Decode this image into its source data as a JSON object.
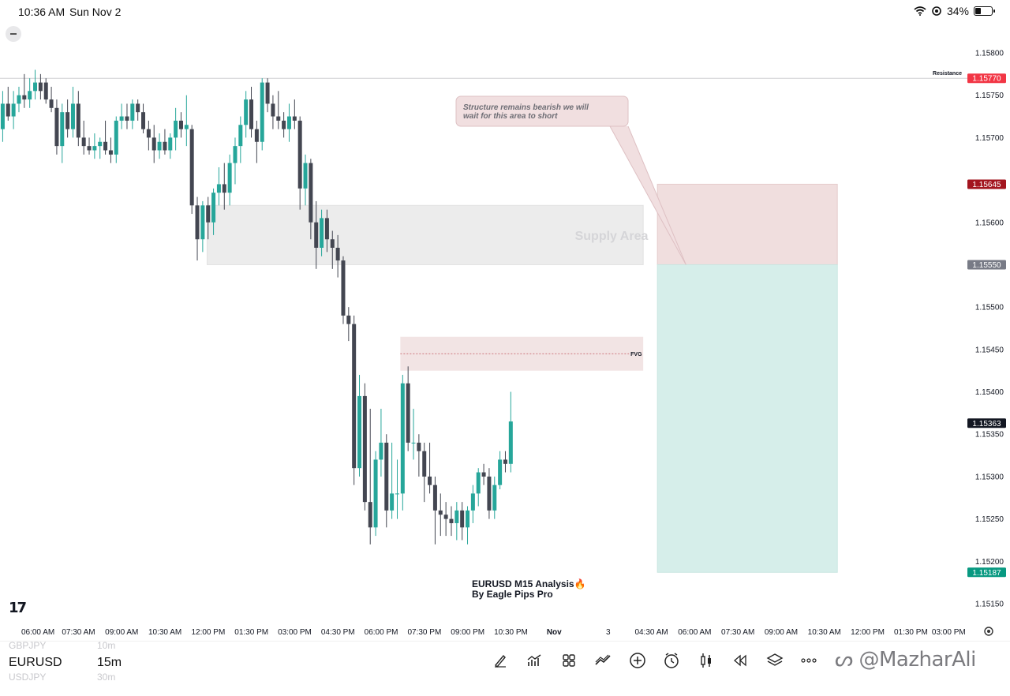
{
  "status_bar": {
    "time": "10:36 AM",
    "date": "Sun Nov 2",
    "battery": "34%",
    "battery_level": 0.34
  },
  "chart_data": {
    "type": "candlestick",
    "symbol": "EURUSD",
    "interval": "15m",
    "title": "EURUSD M15 Analysis🔥",
    "subtitle": "By Eagle Pips Pro",
    "ylim": [
      1.15135,
      1.1584
    ],
    "yticks": [
      1.158,
      1.1575,
      1.157,
      1.156,
      1.155,
      1.1545,
      1.154,
      1.1535,
      1.153,
      1.1525,
      1.152,
      1.1515
    ],
    "ytick_labels": [
      "1.15800",
      "1.15750",
      "1.15700",
      "1.15600",
      "1.15500",
      "1.15450",
      "1.15400",
      "1.15350",
      "1.15300",
      "1.15250",
      "1.15200",
      "1.15150"
    ],
    "xticks": [
      {
        "label": "06:00 AM",
        "bar": 5.5
      },
      {
        "label": "07:30 AM",
        "bar": 13
      },
      {
        "label": "09:00 AM",
        "bar": 21
      },
      {
        "label": "10:30 AM",
        "bar": 29
      },
      {
        "label": "12:00 PM",
        "bar": 37
      },
      {
        "label": "01:30 PM",
        "bar": 45
      },
      {
        "label": "03:00 PM",
        "bar": 53
      },
      {
        "label": "04:30 PM",
        "bar": 61
      },
      {
        "label": "06:00 PM",
        "bar": 69
      },
      {
        "label": "07:30 PM",
        "bar": 77
      },
      {
        "label": "09:00 PM",
        "bar": 85
      },
      {
        "label": "10:30 PM",
        "bar": 93
      },
      {
        "label": "Nov",
        "bar": 101
      },
      {
        "label": "3",
        "bar": 111
      },
      {
        "label": "04:30 AM",
        "bar": 119
      },
      {
        "label": "06:00 AM",
        "bar": 127
      },
      {
        "label": "07:30 AM",
        "bar": 135
      },
      {
        "label": "09:00 AM",
        "bar": 143
      },
      {
        "label": "10:30 AM",
        "bar": 151
      },
      {
        "label": "12:00 PM",
        "bar": 159
      },
      {
        "label": "01:30 PM",
        "bar": 167
      },
      {
        "label": "03:00 PM",
        "bar": 174
      }
    ],
    "ohlc": [
      [
        1.1571,
        1.15755,
        1.15695,
        1.1574
      ],
      [
        1.1574,
        1.1576,
        1.1572,
        1.15725
      ],
      [
        1.15725,
        1.15755,
        1.1571,
        1.1574
      ],
      [
        1.1574,
        1.1576,
        1.1573,
        1.1575
      ],
      [
        1.1575,
        1.15775,
        1.15735,
        1.15745
      ],
      [
        1.15745,
        1.1577,
        1.15735,
        1.15755
      ],
      [
        1.15755,
        1.1578,
        1.15745,
        1.15765
      ],
      [
        1.15765,
        1.15775,
        1.15745,
        1.15755
      ],
      [
        1.15765,
        1.1577,
        1.1574,
        1.15745
      ],
      [
        1.15745,
        1.1576,
        1.1573,
        1.15735
      ],
      [
        1.15735,
        1.15745,
        1.1568,
        1.1569
      ],
      [
        1.1569,
        1.1574,
        1.1567,
        1.1573
      ],
      [
        1.1573,
        1.15745,
        1.157,
        1.1571
      ],
      [
        1.1571,
        1.1576,
        1.157,
        1.1574
      ],
      [
        1.1574,
        1.15755,
        1.1569,
        1.157
      ],
      [
        1.157,
        1.1572,
        1.1568,
        1.1569
      ],
      [
        1.1569,
        1.157,
        1.1568,
        1.15685
      ],
      [
        1.15685,
        1.15705,
        1.15675,
        1.1569
      ],
      [
        1.1569,
        1.157,
        1.15675,
        1.15695
      ],
      [
        1.15695,
        1.1572,
        1.1568,
        1.15685
      ],
      [
        1.15685,
        1.157,
        1.1567,
        1.1568
      ],
      [
        1.1568,
        1.15725,
        1.1567,
        1.1572
      ],
      [
        1.1572,
        1.1574,
        1.1571,
        1.15725
      ],
      [
        1.15725,
        1.1574,
        1.1571,
        1.1572
      ],
      [
        1.1572,
        1.15745,
        1.1571,
        1.1574
      ],
      [
        1.1574,
        1.15745,
        1.1572,
        1.1573
      ],
      [
        1.1573,
        1.1574,
        1.15705,
        1.1571
      ],
      [
        1.1571,
        1.1572,
        1.15685,
        1.157
      ],
      [
        1.157,
        1.15715,
        1.1567,
        1.15685
      ],
      [
        1.15685,
        1.15705,
        1.15675,
        1.15695
      ],
      [
        1.15695,
        1.1571,
        1.1568,
        1.15685
      ],
      [
        1.15685,
        1.15705,
        1.15675,
        1.157
      ],
      [
        1.157,
        1.15735,
        1.15685,
        1.1572
      ],
      [
        1.1572,
        1.1573,
        1.157,
        1.1571
      ],
      [
        1.1571,
        1.1575,
        1.1569,
        1.15715
      ],
      [
        1.1571,
        1.15715,
        1.1561,
        1.1562
      ],
      [
        1.1562,
        1.1563,
        1.15555,
        1.1558
      ],
      [
        1.1558,
        1.15625,
        1.15565,
        1.1562
      ],
      [
        1.1562,
        1.1563,
        1.1558,
        1.156
      ],
      [
        1.156,
        1.1564,
        1.15585,
        1.15635
      ],
      [
        1.15635,
        1.15665,
        1.1562,
        1.15645
      ],
      [
        1.15645,
        1.1567,
        1.15615,
        1.15635
      ],
      [
        1.15635,
        1.1568,
        1.1562,
        1.1567
      ],
      [
        1.1567,
        1.157,
        1.15645,
        1.1569
      ],
      [
        1.1569,
        1.15725,
        1.1567,
        1.15715
      ],
      [
        1.15715,
        1.15755,
        1.157,
        1.15745
      ],
      [
        1.15745,
        1.1576,
        1.157,
        1.1571
      ],
      [
        1.1571,
        1.1572,
        1.1567,
        1.15695
      ],
      [
        1.15695,
        1.1577,
        1.15685,
        1.15765
      ],
      [
        1.15765,
        1.1577,
        1.1573,
        1.1574
      ],
      [
        1.1574,
        1.1575,
        1.1571,
        1.15725
      ],
      [
        1.15725,
        1.15755,
        1.1571,
        1.1572
      ],
      [
        1.1572,
        1.1573,
        1.157,
        1.1571
      ],
      [
        1.1571,
        1.1574,
        1.15695,
        1.15725
      ],
      [
        1.15725,
        1.15745,
        1.1571,
        1.1572
      ],
      [
        1.1572,
        1.15725,
        1.15615,
        1.1564
      ],
      [
        1.1564,
        1.1568,
        1.1562,
        1.1567
      ],
      [
        1.1567,
        1.15675,
        1.1558,
        1.156
      ],
      [
        1.156,
        1.15625,
        1.15545,
        1.1557
      ],
      [
        1.1557,
        1.15615,
        1.1556,
        1.15605
      ],
      [
        1.15605,
        1.15615,
        1.15565,
        1.1558
      ],
      [
        1.1558,
        1.1559,
        1.15545,
        1.1557
      ],
      [
        1.1557,
        1.15585,
        1.15535,
        1.15555
      ],
      [
        1.15555,
        1.1556,
        1.1548,
        1.1549
      ],
      [
        1.1549,
        1.155,
        1.1546,
        1.1548
      ],
      [
        1.1548,
        1.1549,
        1.1529,
        1.1531
      ],
      [
        1.1531,
        1.1542,
        1.153,
        1.15395
      ],
      [
        1.15395,
        1.1541,
        1.1526,
        1.1527
      ],
      [
        1.1527,
        1.1538,
        1.1522,
        1.1524
      ],
      [
        1.1524,
        1.1533,
        1.1523,
        1.1532
      ],
      [
        1.1532,
        1.1538,
        1.153,
        1.1534
      ],
      [
        1.1534,
        1.1535,
        1.1524,
        1.1526
      ],
      [
        1.1526,
        1.1534,
        1.1525,
        1.1528
      ],
      [
        1.1528,
        1.1532,
        1.1525,
        1.1528
      ],
      [
        1.1528,
        1.1542,
        1.1526,
        1.1541
      ],
      [
        1.1541,
        1.1543,
        1.1533,
        1.1534
      ],
      [
        1.1534,
        1.1538,
        1.1532,
        1.1534
      ],
      [
        1.1534,
        1.1535,
        1.153,
        1.1533
      ],
      [
        1.1533,
        1.1534,
        1.1527,
        1.153
      ],
      [
        1.153,
        1.1534,
        1.1528,
        1.1529
      ],
      [
        1.1529,
        1.153,
        1.1522,
        1.1526
      ],
      [
        1.1526,
        1.1528,
        1.1523,
        1.15255
      ],
      [
        1.15255,
        1.1527,
        1.1523,
        1.1525
      ],
      [
        1.1525,
        1.15265,
        1.1523,
        1.15245
      ],
      [
        1.15245,
        1.1527,
        1.15225,
        1.1526
      ],
      [
        1.1526,
        1.1527,
        1.15225,
        1.1524
      ],
      [
        1.1524,
        1.15265,
        1.1522,
        1.1526
      ],
      [
        1.1526,
        1.1529,
        1.15245,
        1.1528
      ],
      [
        1.1528,
        1.1531,
        1.15265,
        1.15305
      ],
      [
        1.15305,
        1.15315,
        1.1529,
        1.153
      ],
      [
        1.153,
        1.1531,
        1.1525,
        1.1526
      ],
      [
        1.1526,
        1.153,
        1.1525,
        1.1529
      ],
      [
        1.1529,
        1.1533,
        1.15285,
        1.1532
      ],
      [
        1.1532,
        1.1533,
        1.15305,
        1.15315
      ],
      [
        1.15315,
        1.154,
        1.15305,
        1.15365
      ]
    ],
    "zones": [
      {
        "name": "Supply Area",
        "label": "Supply Area",
        "from_bar": 37,
        "to_bar": 119,
        "low": 1.1555,
        "high": 1.1562
      },
      {
        "name": "FVG",
        "label": "FVG",
        "from_bar": 71,
        "to_bar": 119,
        "low": 1.15425,
        "high": 1.15465,
        "mid": 1.15445
      }
    ],
    "lines": [
      {
        "name": "Resistance",
        "label": "Resistance",
        "price": 1.1577
      }
    ],
    "position": {
      "type": "short",
      "entry": 1.1555,
      "stop": 1.15645,
      "target": 1.15187,
      "from_bar": 119,
      "to_bar": 152
    },
    "price_tags": [
      {
        "label": "1.15770",
        "price": 1.1577,
        "color": "#f23645"
      },
      {
        "label": "1.15645",
        "price": 1.15645,
        "color": "#a3151f"
      },
      {
        "label": "1.15550",
        "price": 1.1555,
        "color": "#787b86"
      },
      {
        "label": "1.15363",
        "price": 1.15363,
        "color": "#131722"
      },
      {
        "label": "1.15187",
        "price": 1.15187,
        "color": "#089981"
      }
    ],
    "annotation": {
      "text_line1": "Structure remains bearish we will",
      "text_line2": "wait for this area to short",
      "points_to_price": 1.1555,
      "points_to_bar": 124
    },
    "colors": {
      "up": "#26a69a",
      "down": "#434651",
      "supply_zone": "#ececec",
      "fvg_zone": "#f2e4e4",
      "stop_zone": "#f0dede",
      "target_zone": "#d6eeea"
    }
  },
  "symbols": {
    "list": [
      {
        "symbol": "GBPJPY",
        "interval": "10m"
      },
      {
        "symbol": "EURUSD",
        "interval": "15m"
      },
      {
        "symbol": "USDJPY",
        "interval": "30m"
      }
    ]
  },
  "toolbar": {
    "icons": [
      "pen-icon",
      "indicators-icon",
      "templates-icon",
      "compare-icon",
      "add-icon",
      "alert-icon",
      "candle-type-icon",
      "replay-icon",
      "layers-icon",
      "more-icon"
    ]
  },
  "watermark": "@MazharAli"
}
